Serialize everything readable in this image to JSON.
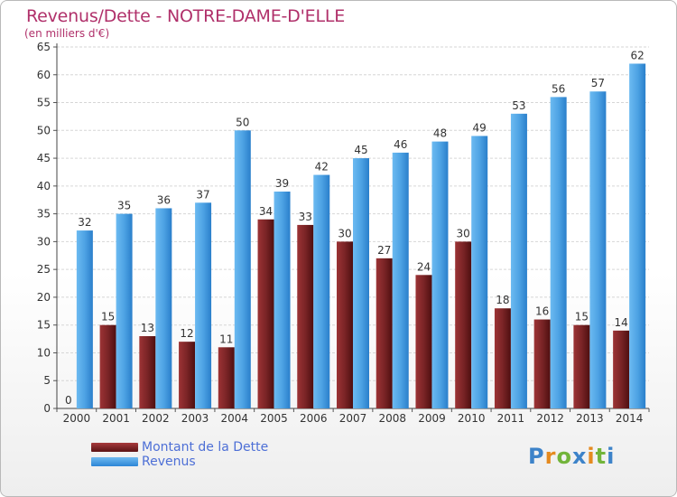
{
  "chart_data": {
    "type": "bar",
    "title": "Revenus/Dette - NOTRE-DAME-D'ELLE",
    "subtitle": "(en milliers d'€)",
    "categories": [
      "2000",
      "2001",
      "2002",
      "2003",
      "2004",
      "2005",
      "2006",
      "2007",
      "2008",
      "2009",
      "2010",
      "2011",
      "2012",
      "2013",
      "2014"
    ],
    "series": [
      {
        "name": "Montant de la Dette",
        "values": [
          0,
          15,
          13,
          12,
          11,
          34,
          33,
          30,
          27,
          24,
          30,
          18,
          16,
          15,
          14
        ],
        "color": "#7a2426"
      },
      {
        "name": "Revenus",
        "values": [
          32,
          35,
          36,
          37,
          50,
          39,
          42,
          45,
          46,
          48,
          49,
          53,
          56,
          57,
          62
        ],
        "color": "#4ea3e4"
      }
    ],
    "ylim": [
      0,
      65
    ],
    "yticks": [
      0,
      5,
      10,
      15,
      20,
      25,
      30,
      35,
      40,
      45,
      50,
      55,
      60,
      65
    ],
    "grid": true,
    "legend_position": "bottom-left"
  },
  "logo": {
    "text": "Proxiti",
    "letters": [
      {
        "ch": "P",
        "color": "#3d83c9"
      },
      {
        "ch": "r",
        "color": "#e58a1f"
      },
      {
        "ch": "o",
        "color": "#72b43a"
      },
      {
        "ch": "x",
        "color": "#3d83c9"
      },
      {
        "ch": "i",
        "color": "#e58a1f"
      },
      {
        "ch": "t",
        "color": "#72b43a"
      },
      {
        "ch": "i",
        "color": "#3d83c9"
      }
    ]
  }
}
